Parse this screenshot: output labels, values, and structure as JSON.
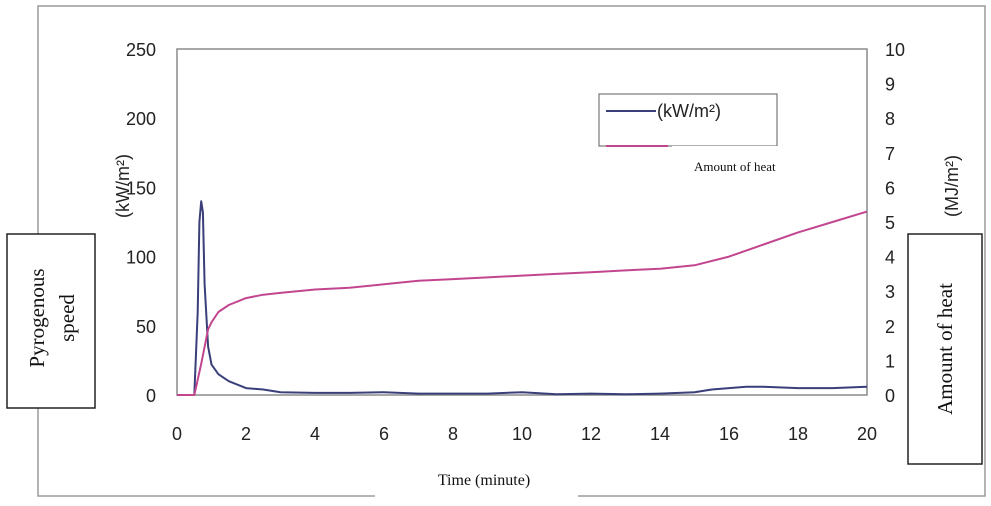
{
  "chart_data": {
    "type": "line",
    "title": "",
    "xlabel": "Time (minute)",
    "xlim": [
      0,
      20
    ],
    "x_ticks": [
      "0",
      "2",
      "4",
      "6",
      "8",
      "10",
      "12",
      "14",
      "16",
      "18",
      "20"
    ],
    "y_left": {
      "unit": "(kW/m²)",
      "label_box": [
        "Pyrogenous",
        "speed"
      ],
      "ylim": [
        0,
        250
      ],
      "ticks": [
        "0",
        "50",
        "100",
        "150",
        "200",
        "250"
      ]
    },
    "y_right": {
      "unit": "(MJ/m²)",
      "label_box": "Amount of heat",
      "ylim": [
        0,
        10
      ],
      "ticks": [
        "0",
        "1",
        "2",
        "3",
        "4",
        "5",
        "6",
        "7",
        "8",
        "9",
        "10"
      ]
    },
    "grid": false,
    "legend_position": "top-right",
    "series": [
      {
        "name": "(kW/m²)",
        "axis": "left",
        "color": "#3a3f7a",
        "x": [
          0,
          0.5,
          0.6,
          0.65,
          0.7,
          0.75,
          0.8,
          0.9,
          1.0,
          1.2,
          1.5,
          2.0,
          2.5,
          3.0,
          4.0,
          5.0,
          6.0,
          7.0,
          8.0,
          9.0,
          10.0,
          11.0,
          12.0,
          13.0,
          14.0,
          15.0,
          15.5,
          16.0,
          16.5,
          17.0,
          18.0,
          19.0,
          20.0
        ],
        "y": [
          0,
          0,
          60,
          125,
          140,
          132,
          80,
          35,
          22,
          15,
          10,
          5,
          4,
          2,
          1.5,
          1.5,
          2,
          1,
          1,
          1,
          2,
          0.5,
          1,
          0.5,
          1,
          2,
          4,
          5,
          6,
          6,
          5,
          5,
          6
        ]
      },
      {
        "name": "",
        "legend_label": "Amount of heat",
        "axis": "right",
        "color": "#c2468f",
        "x": [
          0,
          0.5,
          0.7,
          0.9,
          1.0,
          1.2,
          1.5,
          2.0,
          2.5,
          3.0,
          4.0,
          5.0,
          6.0,
          7.0,
          8.0,
          9.0,
          10.0,
          11.0,
          12.0,
          13.0,
          14.0,
          15.0,
          16.0,
          17.0,
          18.0,
          19.0,
          20.0
        ],
        "y": [
          0,
          0,
          0.9,
          1.9,
          2.1,
          2.4,
          2.6,
          2.8,
          2.9,
          2.95,
          3.05,
          3.1,
          3.2,
          3.3,
          3.35,
          3.4,
          3.45,
          3.5,
          3.55,
          3.6,
          3.65,
          3.75,
          4.0,
          4.35,
          4.7,
          5.0,
          5.3
        ]
      }
    ]
  }
}
